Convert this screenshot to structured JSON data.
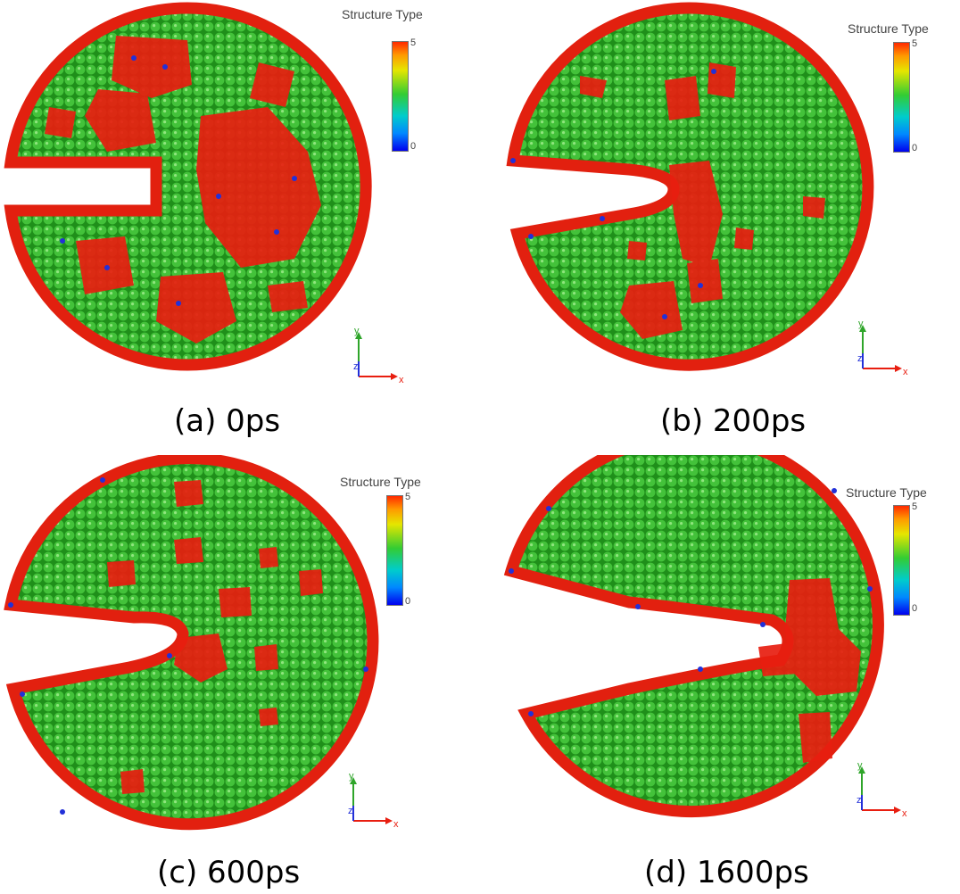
{
  "legend": {
    "title": "Structure Type",
    "max": "5",
    "min": "0"
  },
  "axes": {
    "x": "x",
    "y": "y",
    "z": "z"
  },
  "colors": {
    "fcc": "#2fb52a",
    "other": "#e81e10",
    "bcc": "#2230d8",
    "edge": "#e2200f"
  },
  "panels": [
    {
      "caption": "(a) 0ps"
    },
    {
      "caption": "(b) 200ps"
    },
    {
      "caption": "(c) 600ps"
    },
    {
      "caption": "(d) 1600ps"
    }
  ]
}
